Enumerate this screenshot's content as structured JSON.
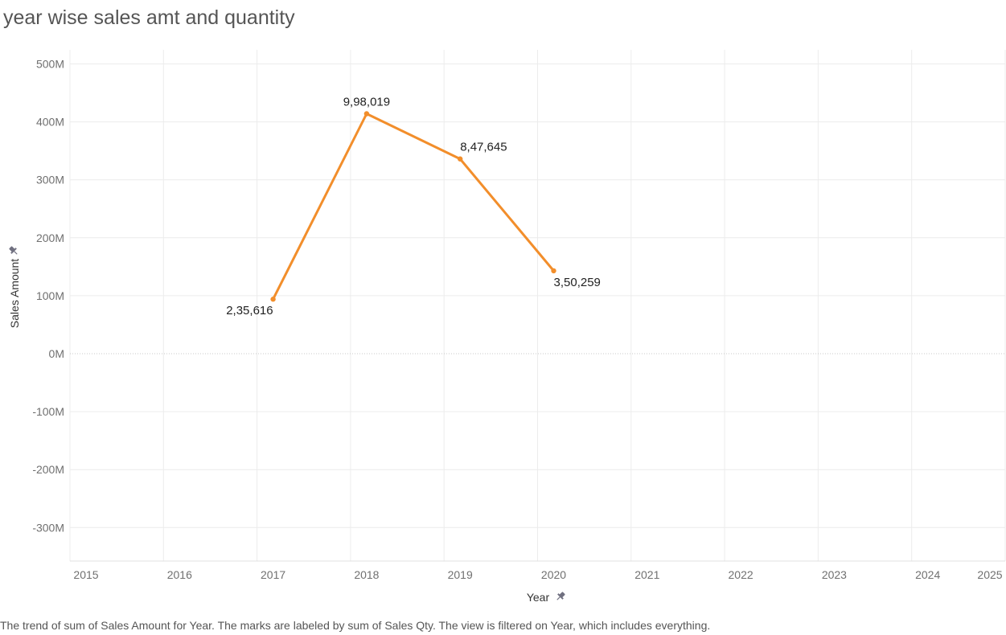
{
  "title": "year wise sales amt and quantity",
  "caption": "The trend of sum of Sales Amount for Year.  The marks are labeled by sum of Sales Qty. The view is filtered on Year, which includes everything.",
  "chart_data": {
    "type": "line",
    "title": "year wise sales amt and quantity",
    "xlabel": "Year",
    "ylabel": "Sales Amount",
    "x_ticks": [
      "2015",
      "2016",
      "2017",
      "2018",
      "2019",
      "2020",
      "2021",
      "2022",
      "2023",
      "2024",
      "2025"
    ],
    "y_ticks": [
      "500M",
      "400M",
      "300M",
      "200M",
      "100M",
      "0M",
      "-100M",
      "-200M",
      "-300M"
    ],
    "xlim": [
      2015,
      2025
    ],
    "ylim": [
      -360,
      500
    ],
    "grid": true,
    "series": [
      {
        "x": [
          2017,
          2018,
          2019,
          2020
        ],
        "y": [
          94,
          414,
          336,
          143
        ],
        "labels": [
          "2,35,616",
          "9,98,019",
          "8,47,645",
          "3,50,259"
        ],
        "color": "#F28E2B"
      }
    ]
  }
}
